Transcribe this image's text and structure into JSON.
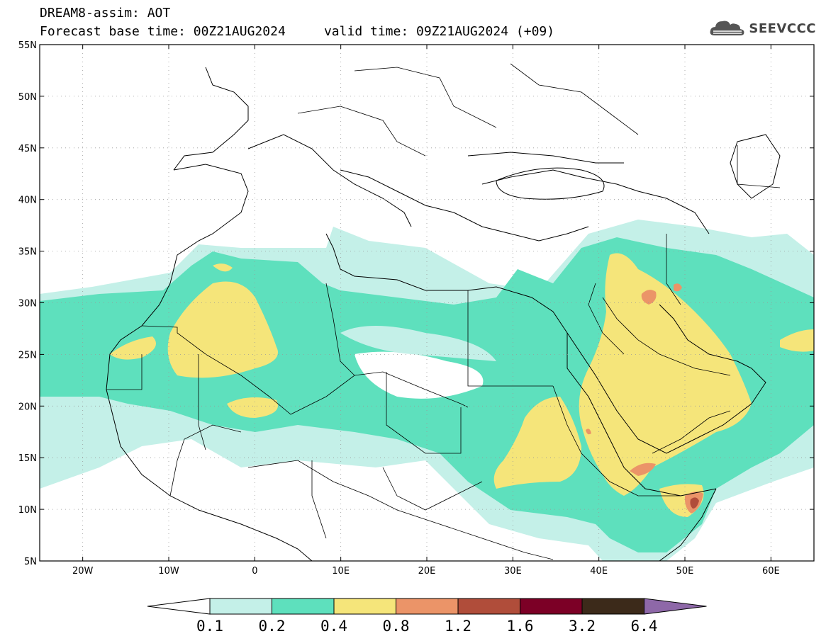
{
  "header": {
    "title_line1": "DREAM8-assim: AOT",
    "title_line2": "Forecast base time: 00Z21AUG2024     valid time: 09Z21AUG2024 (+09)"
  },
  "logo": {
    "text": "SEEVCCC",
    "icon": "cloud-logo-icon",
    "color": "#555555"
  },
  "map": {
    "lon_range": [
      -25,
      65
    ],
    "lat_range": [
      5,
      55
    ],
    "lon_ticks": [
      {
        "value": -20,
        "label": "20W"
      },
      {
        "value": -10,
        "label": "10W"
      },
      {
        "value": 0,
        "label": "0"
      },
      {
        "value": 10,
        "label": "10E"
      },
      {
        "value": 20,
        "label": "20E"
      },
      {
        "value": 30,
        "label": "30E"
      },
      {
        "value": 40,
        "label": "40E"
      },
      {
        "value": 50,
        "label": "50E"
      },
      {
        "value": 60,
        "label": "60E"
      }
    ],
    "lat_ticks": [
      {
        "value": 55,
        "label": "55N"
      },
      {
        "value": 50,
        "label": "50N"
      },
      {
        "value": 45,
        "label": "45N"
      },
      {
        "value": 40,
        "label": "40N"
      },
      {
        "value": 35,
        "label": "35N"
      },
      {
        "value": 30,
        "label": "30N"
      },
      {
        "value": 25,
        "label": "25N"
      },
      {
        "value": 20,
        "label": "20N"
      },
      {
        "value": 15,
        "label": "15N"
      },
      {
        "value": 10,
        "label": "10N"
      },
      {
        "value": 5,
        "label": "5N"
      }
    ],
    "gridlines": true,
    "variable": "AOT"
  },
  "colorbar": {
    "labels": [
      "0.1",
      "0.2",
      "0.4",
      "0.8",
      "1.2",
      "1.6",
      "3.2",
      "6.4"
    ],
    "colors": [
      "#ffffff",
      "#c4f0e8",
      "#5ee0bd",
      "#f5e57a",
      "#eb9468",
      "#b04d3a",
      "#7c0026",
      "#3c2a1a",
      "#8e68a8"
    ]
  }
}
